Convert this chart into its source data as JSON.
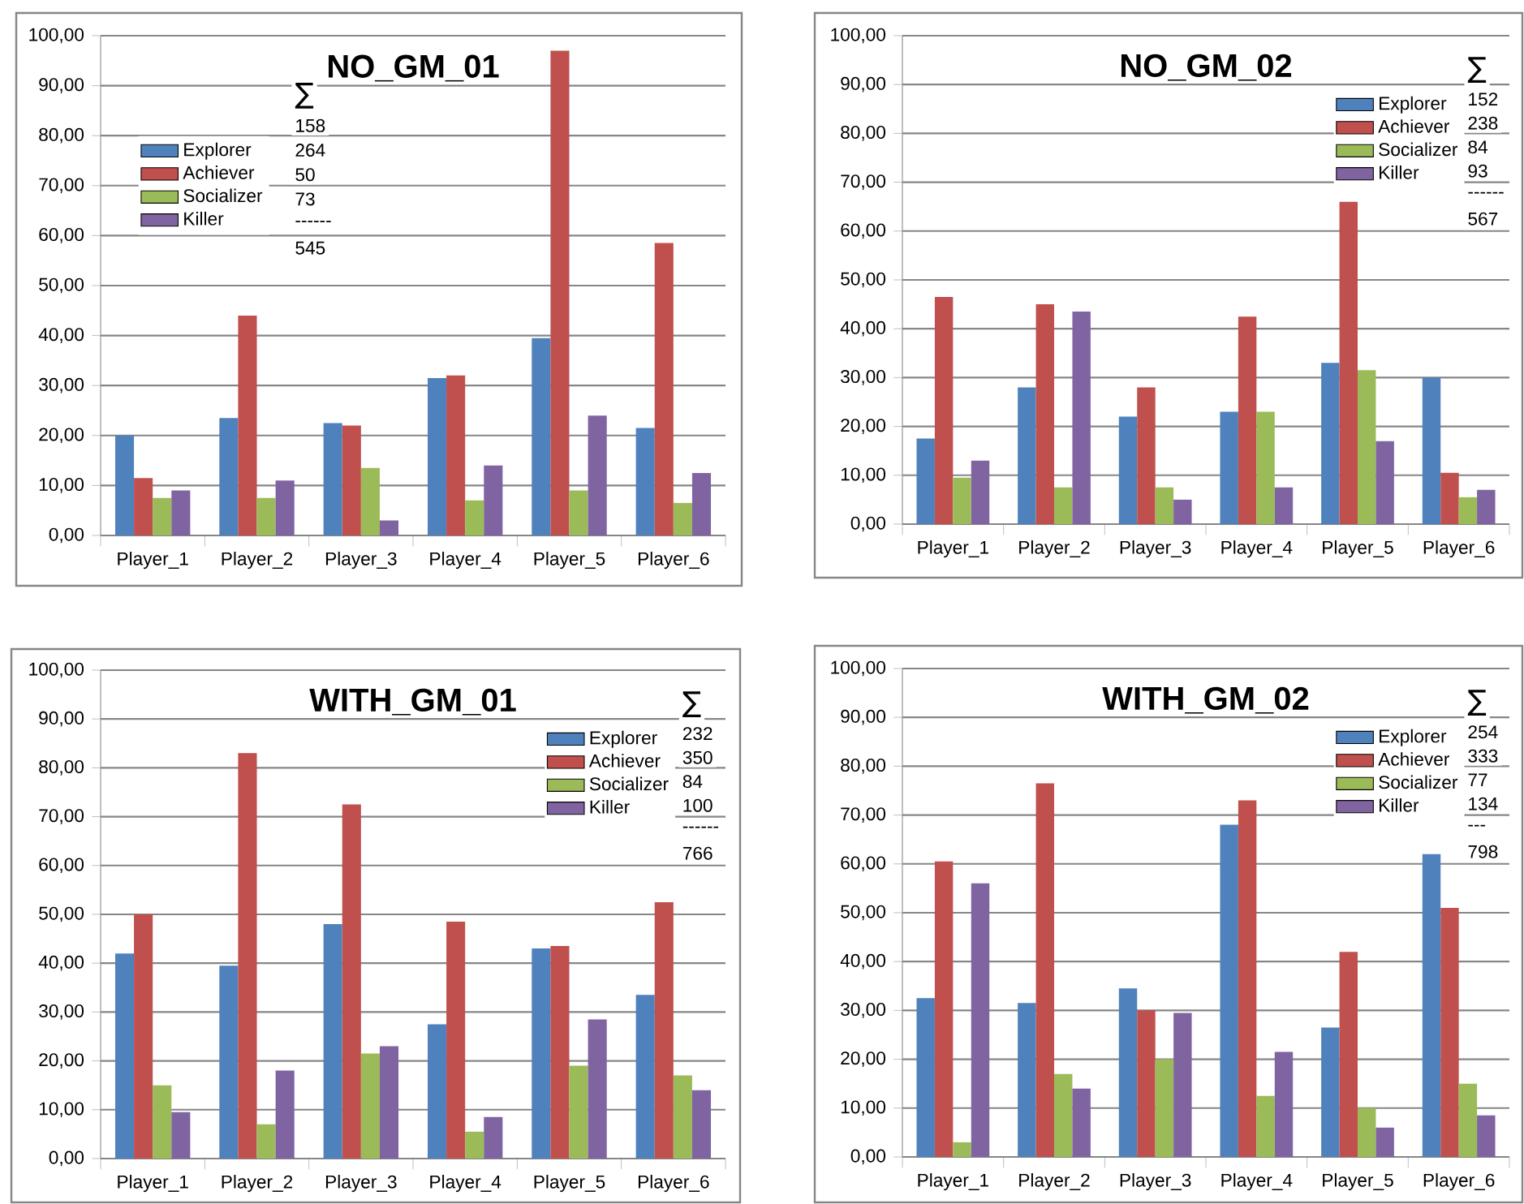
{
  "chart_data": [
    {
      "type": "bar",
      "title": "NO_GM_01",
      "categories": [
        "Player_1",
        "Player_2",
        "Player_3",
        "Player_4",
        "Player_5",
        "Player_6"
      ],
      "series": [
        {
          "name": "Explorer",
          "color": "#4f81bd",
          "values": [
            20,
            23.5,
            22.5,
            31.5,
            39.5,
            21.5
          ]
        },
        {
          "name": "Achiever",
          "color": "#c0504d",
          "values": [
            11.5,
            44,
            22,
            32,
            97,
            58.5
          ]
        },
        {
          "name": "Socializer",
          "color": "#9bbb59",
          "values": [
            7.5,
            7.5,
            13.5,
            7,
            9,
            6.5
          ]
        },
        {
          "name": "Killer",
          "color": "#8064a2",
          "values": [
            9,
            11,
            3,
            14,
            24,
            12.5
          ]
        }
      ],
      "ylim": [
        0,
        100
      ],
      "yticks": [
        {
          "value": 0,
          "label": "0,00"
        },
        {
          "value": 10,
          "label": "10,00"
        },
        {
          "value": 20,
          "label": "20,00"
        },
        {
          "value": 30,
          "label": "30,00"
        },
        {
          "value": 40,
          "label": "40,00"
        },
        {
          "value": 50,
          "label": "50,00"
        },
        {
          "value": 60,
          "label": "60,00"
        },
        {
          "value": 70,
          "label": "70,00"
        },
        {
          "value": 80,
          "label": "80,00"
        },
        {
          "value": 90,
          "label": "90,00"
        },
        {
          "value": 100,
          "label": "100,00"
        }
      ],
      "grid": "y",
      "legend": "top left",
      "annotations": [
        "∑",
        "158",
        "264",
        "50",
        "73",
        "------",
        "545"
      ]
    },
    {
      "type": "bar",
      "title": "NO_GM_02",
      "categories": [
        "Player_1",
        "Player_2",
        "Player_3",
        "Player_4",
        "Player_5",
        "Player_6"
      ],
      "series": [
        {
          "name": "Explorer",
          "color": "#4f81bd",
          "values": [
            17.5,
            28,
            22,
            23,
            33,
            30
          ]
        },
        {
          "name": "Achiever",
          "color": "#c0504d",
          "values": [
            46.5,
            45,
            28,
            42.5,
            66,
            10.5
          ]
        },
        {
          "name": "Socializer",
          "color": "#9bbb59",
          "values": [
            9.5,
            7.5,
            7.5,
            23,
            31.5,
            5.5
          ]
        },
        {
          "name": "Killer",
          "color": "#8064a2",
          "values": [
            13,
            43.5,
            5,
            7.5,
            17,
            7
          ]
        }
      ],
      "ylim": [
        0,
        100
      ],
      "yticks": [
        {
          "value": 0,
          "label": "0,00"
        },
        {
          "value": 10,
          "label": "10,00"
        },
        {
          "value": 20,
          "label": "20,00"
        },
        {
          "value": 30,
          "label": "30,00"
        },
        {
          "value": 40,
          "label": "40,00"
        },
        {
          "value": 50,
          "label": "50,00"
        },
        {
          "value": 60,
          "label": "60,00"
        },
        {
          "value": 70,
          "label": "70,00"
        },
        {
          "value": 80,
          "label": "80,00"
        },
        {
          "value": 90,
          "label": "90,00"
        },
        {
          "value": 100,
          "label": "100,00"
        }
      ],
      "grid": "y",
      "legend": "top right",
      "annotations": [
        "∑",
        "152",
        "238",
        "84",
        "93",
        "------",
        "567"
      ]
    },
    {
      "type": "bar",
      "title": "WITH_GM_01",
      "categories": [
        "Player_1",
        "Player_2",
        "Player_3",
        "Player_4",
        "Player_5",
        "Player_6"
      ],
      "series": [
        {
          "name": "Explorer",
          "color": "#4f81bd",
          "values": [
            42,
            39.5,
            48,
            27.5,
            43,
            33.5
          ]
        },
        {
          "name": "Achiever",
          "color": "#c0504d",
          "values": [
            50,
            83,
            72.5,
            48.5,
            43.5,
            52.5
          ]
        },
        {
          "name": "Socializer",
          "color": "#9bbb59",
          "values": [
            15,
            7,
            21.5,
            5.5,
            19,
            17
          ]
        },
        {
          "name": "Killer",
          "color": "#8064a2",
          "values": [
            9.5,
            18,
            23,
            8.5,
            28.5,
            14
          ]
        }
      ],
      "ylim": [
        0,
        100
      ],
      "yticks": [
        {
          "value": 0,
          "label": "0,00"
        },
        {
          "value": 10,
          "label": "10,00"
        },
        {
          "value": 20,
          "label": "20,00"
        },
        {
          "value": 30,
          "label": "30,00"
        },
        {
          "value": 40,
          "label": "40,00"
        },
        {
          "value": 50,
          "label": "50,00"
        },
        {
          "value": 60,
          "label": "60,00"
        },
        {
          "value": 70,
          "label": "70,00"
        },
        {
          "value": 80,
          "label": "80,00"
        },
        {
          "value": 90,
          "label": "90,00"
        },
        {
          "value": 100,
          "label": "100,00"
        }
      ],
      "grid": "y",
      "legend": "top right",
      "annotations": [
        "∑",
        "232",
        "350",
        "84",
        "100",
        "------",
        "766"
      ]
    },
    {
      "type": "bar",
      "title": "WITH_GM_02",
      "categories": [
        "Player_1",
        "Player_2",
        "Player_3",
        "Player_4",
        "Player_5",
        "Player_6"
      ],
      "series": [
        {
          "name": "Explorer",
          "color": "#4f81bd",
          "values": [
            32.5,
            31.5,
            34.5,
            68,
            26.5,
            62
          ]
        },
        {
          "name": "Achiever",
          "color": "#c0504d",
          "values": [
            60.5,
            76.5,
            30,
            73,
            42,
            51
          ]
        },
        {
          "name": "Socializer",
          "color": "#9bbb59",
          "values": [
            3,
            17,
            20,
            12.5,
            10,
            15
          ]
        },
        {
          "name": "Killer",
          "color": "#8064a2",
          "values": [
            56,
            14,
            29.5,
            21.5,
            6,
            8.5
          ]
        }
      ],
      "ylim": [
        0,
        100
      ],
      "yticks": [
        {
          "value": 0,
          "label": "0,00"
        },
        {
          "value": 10,
          "label": "10,00"
        },
        {
          "value": 20,
          "label": "20,00"
        },
        {
          "value": 30,
          "label": "30,00"
        },
        {
          "value": 40,
          "label": "40,00"
        },
        {
          "value": 50,
          "label": "50,00"
        },
        {
          "value": 60,
          "label": "60,00"
        },
        {
          "value": 70,
          "label": "70,00"
        },
        {
          "value": 80,
          "label": "80,00"
        },
        {
          "value": 90,
          "label": "90,00"
        },
        {
          "value": 100,
          "label": "100,00"
        }
      ],
      "grid": "y",
      "legend": "top right",
      "annotations": [
        "∑",
        "254",
        "333",
        "77",
        "134",
        "---",
        "798"
      ]
    }
  ]
}
